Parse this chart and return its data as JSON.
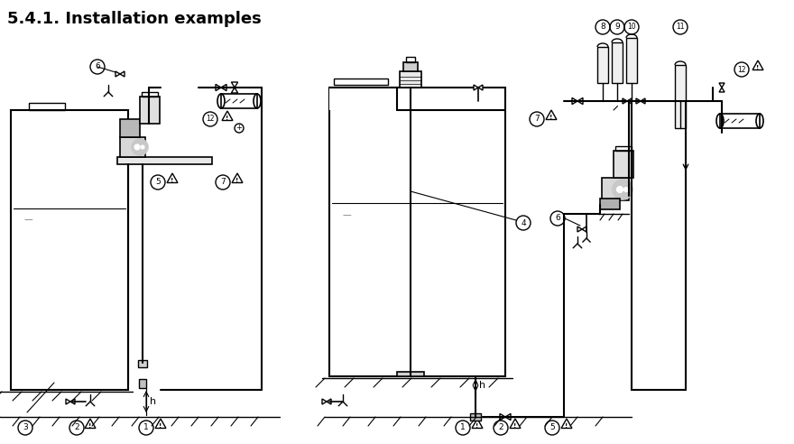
{
  "title": "5.4.1. Installation examples",
  "title_fontsize": 13,
  "title_fontweight": "bold",
  "bg_color": "#ffffff",
  "line_color": "#000000",
  "line_width": 1.2,
  "fig_width": 8.8,
  "fig_height": 4.92
}
